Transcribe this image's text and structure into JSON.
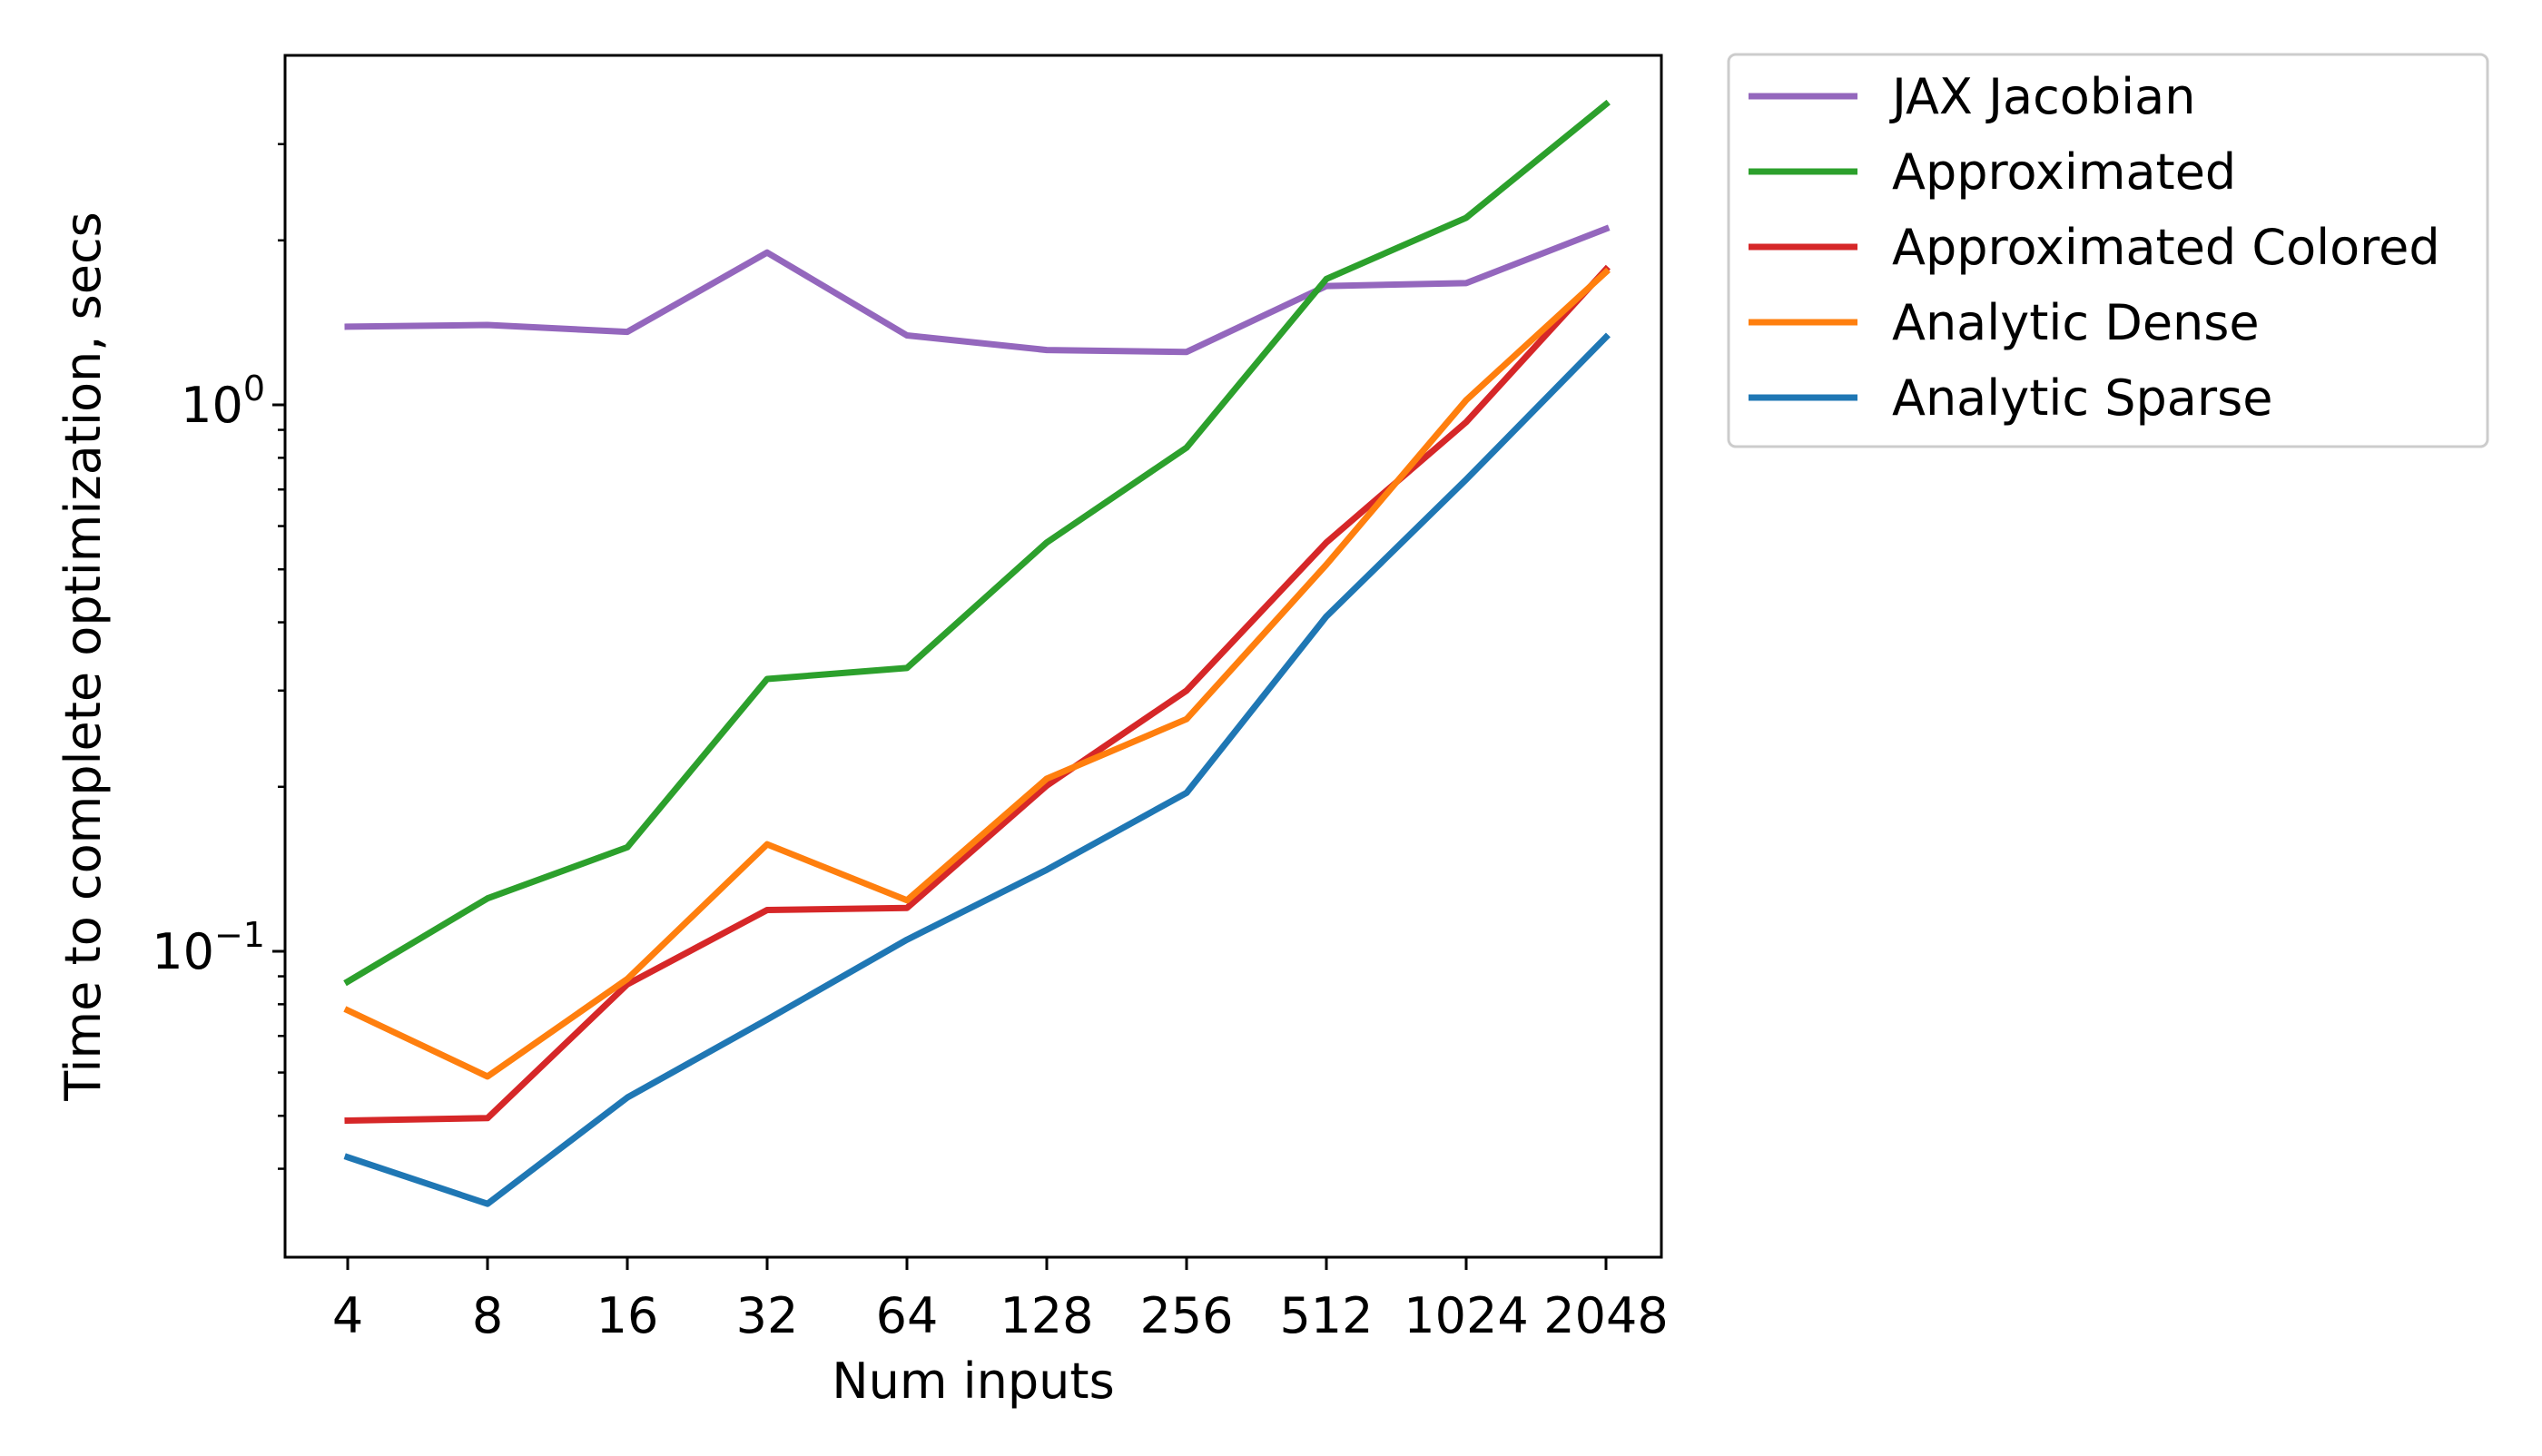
{
  "chart_data": {
    "type": "line",
    "title": "",
    "xlabel": "Num inputs",
    "ylabel": "Time to complete optimization, secs",
    "yscale": "log",
    "ylim": [
      0.034,
      3.9
    ],
    "categories": [
      "4",
      "8",
      "16",
      "32",
      "64",
      "128",
      "256",
      "512",
      "1024",
      "2048"
    ],
    "y_ticks": [
      {
        "value": 0.1,
        "base": "10",
        "exponent": "−1"
      },
      {
        "value": 1,
        "base": "10",
        "exponent": "0"
      }
    ],
    "grid": false,
    "legend_position": "outside-top-right",
    "series": [
      {
        "name": "JAX Jacobian",
        "color": "#9467bd",
        "values": [
          1.39,
          1.4,
          1.36,
          1.9,
          1.34,
          1.26,
          1.25,
          1.65,
          1.67,
          2.1
        ]
      },
      {
        "name": "Approximated",
        "color": "#2ca02c",
        "values": [
          0.088,
          0.125,
          0.155,
          0.315,
          0.33,
          0.56,
          0.835,
          1.7,
          2.2,
          3.55
        ]
      },
      {
        "name": "Approximated Colored",
        "color": "#d62728",
        "values": [
          0.049,
          0.0495,
          0.087,
          0.119,
          0.12,
          0.201,
          0.3,
          0.56,
          0.93,
          1.77
        ]
      },
      {
        "name": "Analytic Dense",
        "color": "#ff7f0e",
        "values": [
          0.078,
          0.059,
          0.089,
          0.157,
          0.124,
          0.207,
          0.266,
          0.51,
          1.02,
          1.75
        ]
      },
      {
        "name": "Analytic Sparse",
        "color": "#1f77b4",
        "values": [
          0.042,
          0.0345,
          0.054,
          0.075,
          0.105,
          0.141,
          0.195,
          0.41,
          0.73,
          1.33
        ]
      }
    ]
  }
}
